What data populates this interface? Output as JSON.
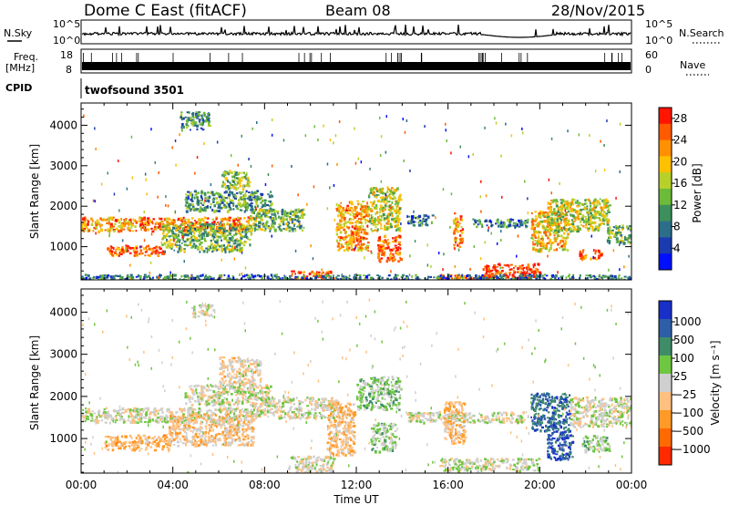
{
  "header": {
    "radar": "Dome C East (fitACF)",
    "beam": "Beam 08",
    "date": "28/Nov/2015"
  },
  "top_panels": {
    "nsky_label": "N.Sky",
    "nsky_top": "10^5",
    "nsky_bottom": "10^0",
    "nsearch_label": "N.Search",
    "nsearch_top": "10^5",
    "nsearch_bottom": "10^0",
    "freq_label_1": "Freq.",
    "freq_label_2": "[MHz]",
    "freq_top": "18",
    "freq_bottom": "8",
    "nave_label": "Nave",
    "nave_top": "60",
    "nave_bottom": "0",
    "cpid_label": "CPID",
    "cpid_value": "twofsound 3501"
  },
  "chart_data": [
    {
      "type": "heatmap",
      "name": "power",
      "ylabel": "Slant Range [km]",
      "xlabel": "Time UT",
      "x_ticks": [
        "00:00",
        "04:00",
        "08:00",
        "12:00",
        "16:00",
        "20:00",
        "00:00"
      ],
      "xlim_hours": [
        0,
        24
      ],
      "y_ticks": [
        1000,
        2000,
        3000,
        4000
      ],
      "ylim": [
        180,
        4550
      ],
      "colorbar": {
        "label": "Power [dB]",
        "ticks": [
          4,
          8,
          12,
          16,
          20,
          24,
          28
        ],
        "range": [
          0,
          30
        ],
        "colors": [
          "#0010ff",
          "#1a3cb0",
          "#2c6e8a",
          "#3d8f5c",
          "#6dbb3a",
          "#b7d02a",
          "#ffc000",
          "#ff9000",
          "#ff5a00",
          "#ff1500"
        ]
      },
      "features": [
        {
          "t0": 0.0,
          "t1": 2.6,
          "r0": 1400,
          "r1": 1750,
          "value": 22
        },
        {
          "t0": 2.6,
          "t1": 7.6,
          "r0": 1400,
          "r1": 1750,
          "value": 24
        },
        {
          "t0": 1.1,
          "t1": 3.6,
          "r0": 800,
          "r1": 1050,
          "value": 25
        },
        {
          "t0": 3.5,
          "t1": 7.4,
          "r0": 900,
          "r1": 1600,
          "value": 13
        },
        {
          "t0": 4.5,
          "t1": 8.3,
          "r0": 1900,
          "r1": 2400,
          "value": 11
        },
        {
          "t0": 6.1,
          "t1": 7.3,
          "r0": 2450,
          "r1": 2900,
          "value": 14
        },
        {
          "t0": 4.3,
          "t1": 5.6,
          "r0": 3900,
          "r1": 4350,
          "value": 10
        },
        {
          "t0": 7.3,
          "t1": 9.7,
          "r0": 1400,
          "r1": 1950,
          "value": 13
        },
        {
          "t0": 9.0,
          "t1": 11.0,
          "r0": 200,
          "r1": 420,
          "value": 27
        },
        {
          "t0": 11.1,
          "t1": 12.5,
          "r0": 900,
          "r1": 2150,
          "value": 22
        },
        {
          "t0": 12.5,
          "t1": 13.9,
          "r0": 1400,
          "r1": 2500,
          "value": 17
        },
        {
          "t0": 12.9,
          "t1": 13.9,
          "r0": 650,
          "r1": 1300,
          "value": 25
        },
        {
          "t0": 14.2,
          "t1": 15.3,
          "r0": 1550,
          "r1": 1800,
          "value": 9
        },
        {
          "t0": 15.6,
          "t1": 17.9,
          "r0": 200,
          "r1": 330,
          "value": 27
        },
        {
          "t0": 16.2,
          "t1": 16.6,
          "r0": 1000,
          "r1": 1850,
          "value": 22
        },
        {
          "t0": 17.0,
          "t1": 19.5,
          "r0": 1500,
          "r1": 1700,
          "value": 9
        },
        {
          "t0": 17.5,
          "t1": 20.0,
          "r0": 200,
          "r1": 600,
          "value": 28
        },
        {
          "t0": 19.6,
          "t1": 21.2,
          "r0": 900,
          "r1": 1900,
          "value": 20
        },
        {
          "t0": 20.3,
          "t1": 23.0,
          "r0": 1400,
          "r1": 2200,
          "value": 16
        },
        {
          "t0": 21.7,
          "t1": 22.7,
          "r0": 700,
          "r1": 950,
          "value": 26
        },
        {
          "t0": 22.9,
          "t1": 24.0,
          "r0": 1100,
          "r1": 1550,
          "value": 13
        },
        {
          "t0": 0.0,
          "t1": 24.0,
          "r0": 180,
          "r1": 330,
          "value": 8
        }
      ]
    },
    {
      "type": "heatmap",
      "name": "velocity",
      "ylabel": "Slant Range [km]",
      "xlabel": "Time UT",
      "x_ticks": [
        "00:00",
        "04:00",
        "08:00",
        "12:00",
        "16:00",
        "20:00",
        "00:00"
      ],
      "xlim_hours": [
        0,
        24
      ],
      "y_ticks": [
        1000,
        2000,
        3000,
        4000
      ],
      "ylim": [
        180,
        4550
      ],
      "colorbar": {
        "label": "Velocity [m s⁻¹]",
        "ticks": [
          "1000",
          "500",
          "100",
          "25",
          "−25",
          "−100",
          "−500",
          "−1000"
        ],
        "range": [
          -1200,
          1200
        ],
        "colors": [
          "#1830c8",
          "#2e5ea8",
          "#3f8c68",
          "#6fc640",
          "#cfcfcf",
          "#ffc080",
          "#ff9a28",
          "#ff6a00",
          "#ff2a00"
        ]
      },
      "features": [
        {
          "t0": 0.0,
          "t1": 7.5,
          "r0": 1400,
          "r1": 1750,
          "value": 0
        },
        {
          "t0": 1.0,
          "t1": 3.8,
          "r0": 750,
          "r1": 1100,
          "value": -400
        },
        {
          "t0": 3.8,
          "t1": 7.5,
          "r0": 850,
          "r1": 1600,
          "value": -250
        },
        {
          "t0": 4.5,
          "t1": 8.3,
          "r0": 1800,
          "r1": 2300,
          "value": 0
        },
        {
          "t0": 6.0,
          "t1": 7.8,
          "r0": 2300,
          "r1": 2950,
          "value": -150
        },
        {
          "t0": 4.8,
          "t1": 5.8,
          "r0": 3900,
          "r1": 4200,
          "value": 0
        },
        {
          "t0": 7.5,
          "t1": 11.3,
          "r0": 1500,
          "r1": 2000,
          "value": 0
        },
        {
          "t0": 9.0,
          "t1": 11.0,
          "r0": 200,
          "r1": 600,
          "value": -60
        },
        {
          "t0": 10.7,
          "t1": 11.9,
          "r0": 600,
          "r1": 1900,
          "value": -300
        },
        {
          "t0": 12.0,
          "t1": 13.9,
          "r0": 1700,
          "r1": 2500,
          "value": 200
        },
        {
          "t0": 12.6,
          "t1": 13.7,
          "r0": 700,
          "r1": 1400,
          "value": 150
        },
        {
          "t0": 14.2,
          "t1": 19.5,
          "r0": 1400,
          "r1": 1650,
          "value": 0
        },
        {
          "t0": 15.8,
          "t1": 16.7,
          "r0": 900,
          "r1": 1900,
          "value": -300
        },
        {
          "t0": 15.6,
          "t1": 20.0,
          "r0": 250,
          "r1": 550,
          "value": 60
        },
        {
          "t0": 19.6,
          "t1": 21.3,
          "r0": 1200,
          "r1": 2100,
          "value": 700
        },
        {
          "t0": 20.3,
          "t1": 21.4,
          "r0": 500,
          "r1": 1200,
          "value": 900
        },
        {
          "t0": 21.3,
          "t1": 24.0,
          "r0": 1300,
          "r1": 2000,
          "value": 0
        },
        {
          "t0": 21.8,
          "t1": 23.0,
          "r0": 700,
          "r1": 1100,
          "value": 150
        }
      ]
    }
  ]
}
